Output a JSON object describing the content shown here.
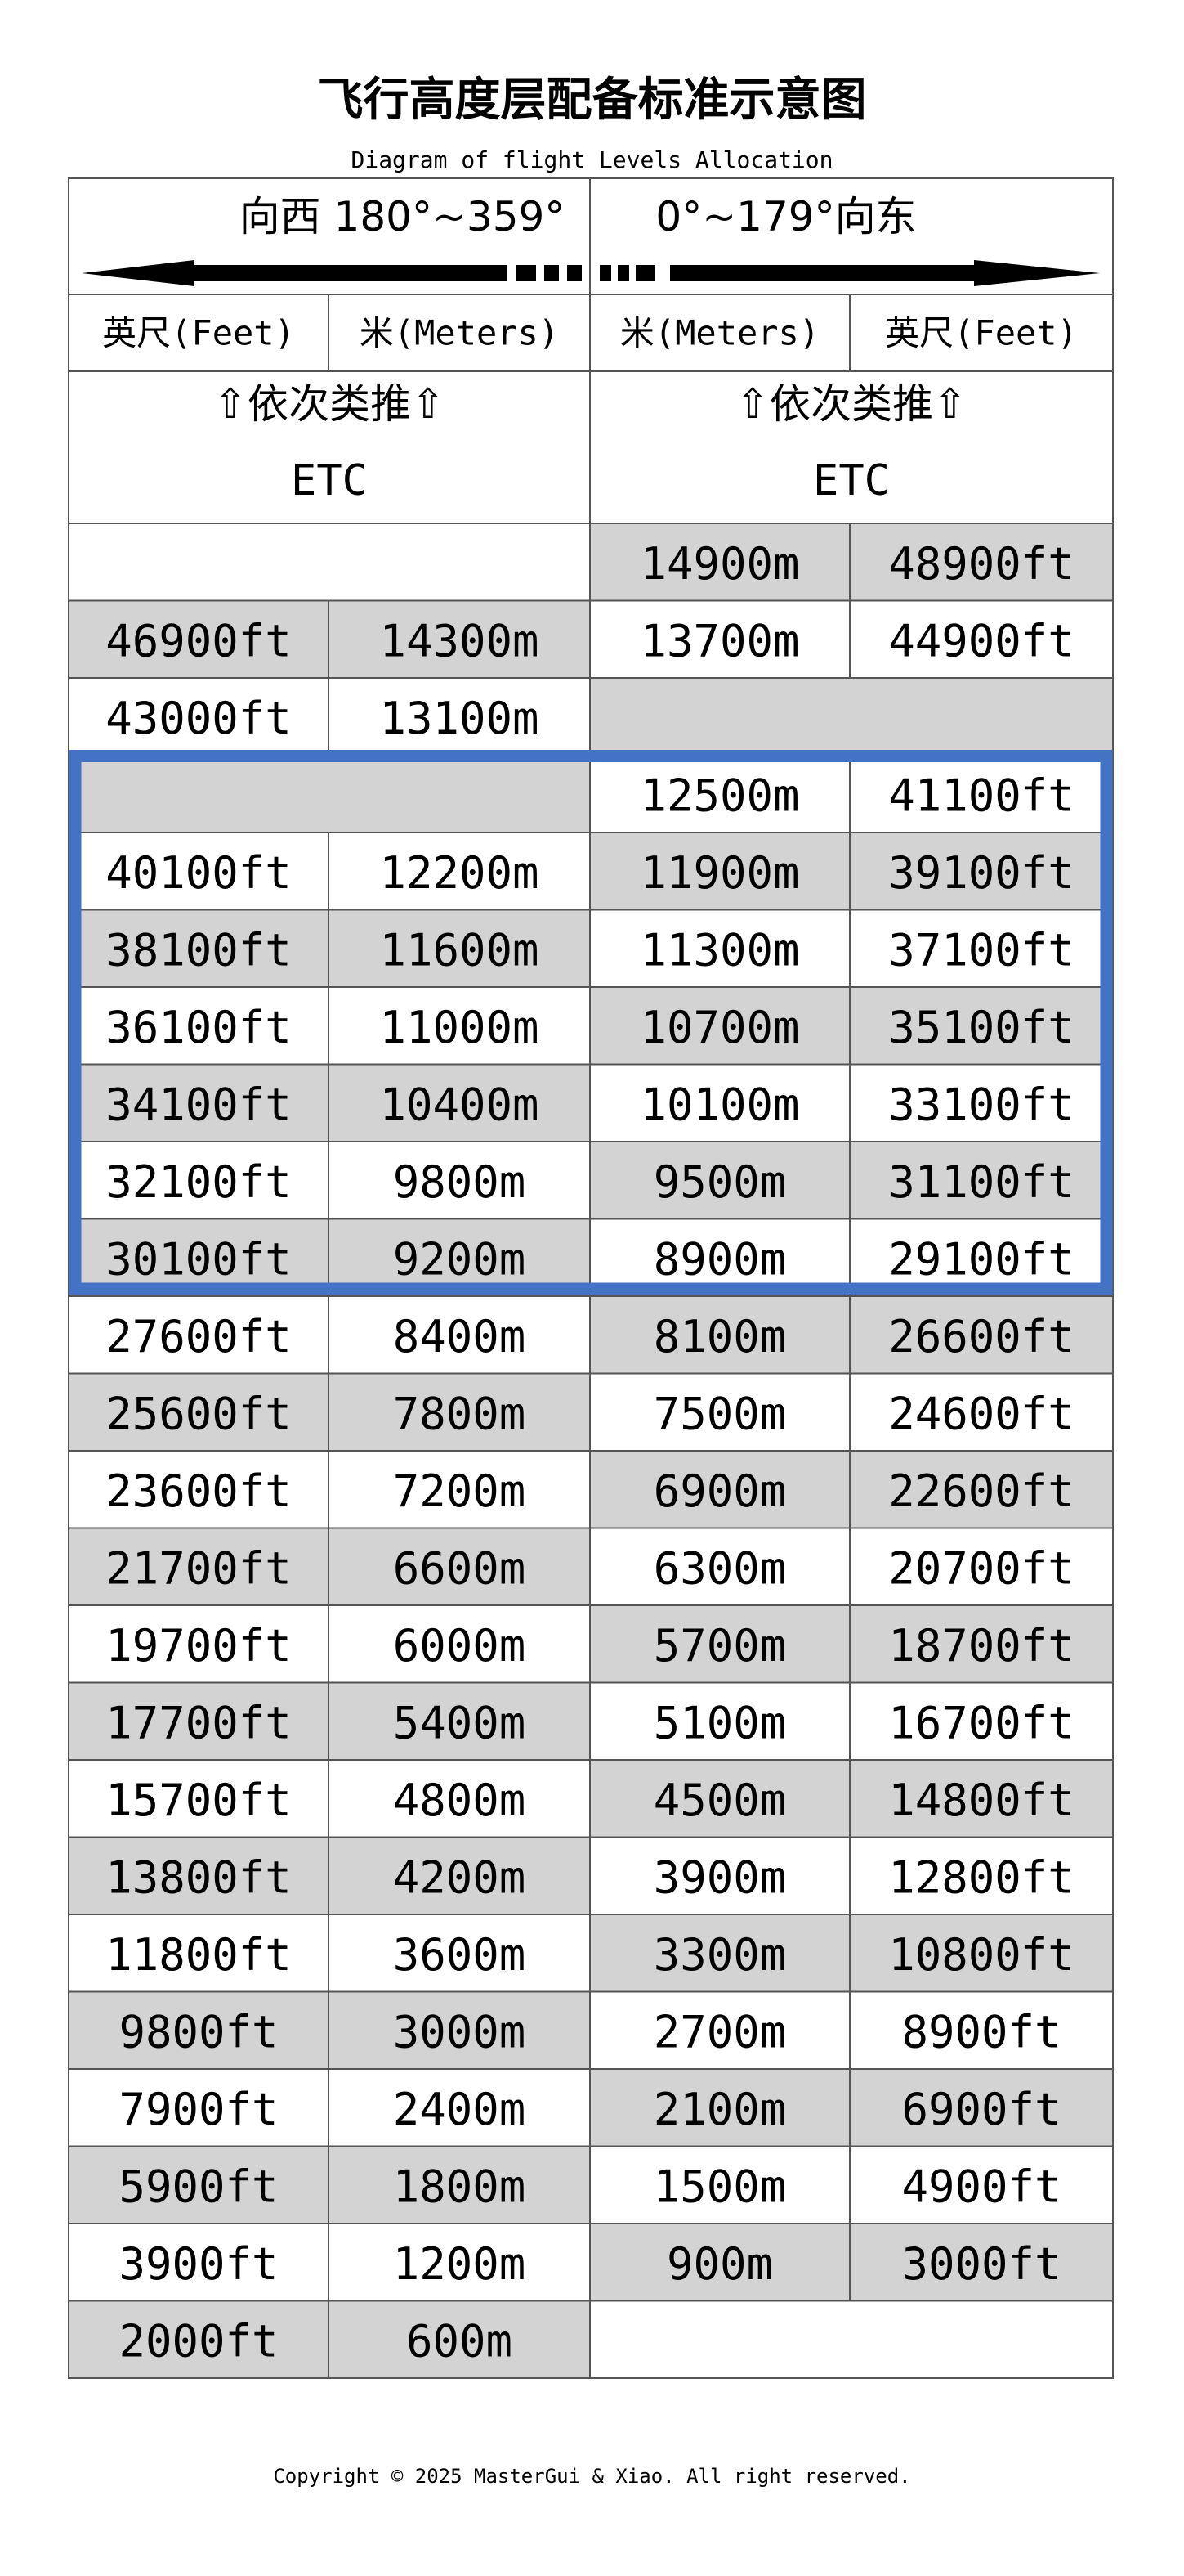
{
  "title": "飞行高度层配备标准示意图",
  "subtitle": "Diagram of flight Levels Allocation",
  "direction": {
    "west": "向西 180°~359°",
    "east": "0°~179°向东"
  },
  "headers": {
    "west_feet": "英尺(Feet)",
    "west_meters": "米(Meters)",
    "east_meters": "米(Meters)",
    "east_feet": "英尺(Feet)"
  },
  "etc": {
    "arrows_text": "⇧依次类推⇧",
    "label": "ETC"
  },
  "rows": [
    {
      "wf": "",
      "wm": "",
      "em": "14900m",
      "ef": "48900ft",
      "wshade": false,
      "eshade": true
    },
    {
      "wf": "46900ft",
      "wm": "14300m",
      "em": "13700m",
      "ef": "44900ft",
      "wshade": true,
      "eshade": false
    },
    {
      "wf": "43000ft",
      "wm": "13100m",
      "em": "",
      "ef": "",
      "wshade": false,
      "eshade": true
    },
    {
      "wf": "",
      "wm": "",
      "em": "12500m",
      "ef": "41100ft",
      "wshade": true,
      "eshade": false
    },
    {
      "wf": "40100ft",
      "wm": "12200m",
      "em": "11900m",
      "ef": "39100ft",
      "wshade": false,
      "eshade": true
    },
    {
      "wf": "38100ft",
      "wm": "11600m",
      "em": "11300m",
      "ef": "37100ft",
      "wshade": true,
      "eshade": false
    },
    {
      "wf": "36100ft",
      "wm": "11000m",
      "em": "10700m",
      "ef": "35100ft",
      "wshade": false,
      "eshade": true
    },
    {
      "wf": "34100ft",
      "wm": "10400m",
      "em": "10100m",
      "ef": "33100ft",
      "wshade": true,
      "eshade": false
    },
    {
      "wf": "32100ft",
      "wm": "9800m",
      "em": "9500m",
      "ef": "31100ft",
      "wshade": false,
      "eshade": true
    },
    {
      "wf": "30100ft",
      "wm": "9200m",
      "em": "8900m",
      "ef": "29100ft",
      "wshade": true,
      "eshade": false
    },
    {
      "wf": "27600ft",
      "wm": "8400m",
      "em": "8100m",
      "ef": "26600ft",
      "wshade": false,
      "eshade": true
    },
    {
      "wf": "25600ft",
      "wm": "7800m",
      "em": "7500m",
      "ef": "24600ft",
      "wshade": true,
      "eshade": false
    },
    {
      "wf": "23600ft",
      "wm": "7200m",
      "em": "6900m",
      "ef": "22600ft",
      "wshade": false,
      "eshade": true
    },
    {
      "wf": "21700ft",
      "wm": "6600m",
      "em": "6300m",
      "ef": "20700ft",
      "wshade": true,
      "eshade": false
    },
    {
      "wf": "19700ft",
      "wm": "6000m",
      "em": "5700m",
      "ef": "18700ft",
      "wshade": false,
      "eshade": true
    },
    {
      "wf": "17700ft",
      "wm": "5400m",
      "em": "5100m",
      "ef": "16700ft",
      "wshade": true,
      "eshade": false
    },
    {
      "wf": "15700ft",
      "wm": "4800m",
      "em": "4500m",
      "ef": "14800ft",
      "wshade": false,
      "eshade": true
    },
    {
      "wf": "13800ft",
      "wm": "4200m",
      "em": "3900m",
      "ef": "12800ft",
      "wshade": true,
      "eshade": false
    },
    {
      "wf": "11800ft",
      "wm": "3600m",
      "em": "3300m",
      "ef": "10800ft",
      "wshade": false,
      "eshade": true
    },
    {
      "wf": "9800ft",
      "wm": "3000m",
      "em": "2700m",
      "ef": "8900ft",
      "wshade": true,
      "eshade": false
    },
    {
      "wf": "7900ft",
      "wm": "2400m",
      "em": "2100m",
      "ef": "6900ft",
      "wshade": false,
      "eshade": true
    },
    {
      "wf": "5900ft",
      "wm": "1800m",
      "em": "1500m",
      "ef": "4900ft",
      "wshade": true,
      "eshade": false
    },
    {
      "wf": "3900ft",
      "wm": "1200m",
      "em": "900m",
      "ef": "3000ft",
      "wshade": false,
      "eshade": true
    },
    {
      "wf": "2000ft",
      "wm": "600m",
      "em": "",
      "ef": "",
      "wshade": true,
      "eshade": false
    }
  ],
  "highlight": {
    "first_row": 3,
    "last_row": 9,
    "color": "#4472c4"
  },
  "colors": {
    "shade": "#d3d3d3",
    "grid": "#555555"
  },
  "footer": "Copyright © 2025 MasterGui & Xiao. All right reserved."
}
